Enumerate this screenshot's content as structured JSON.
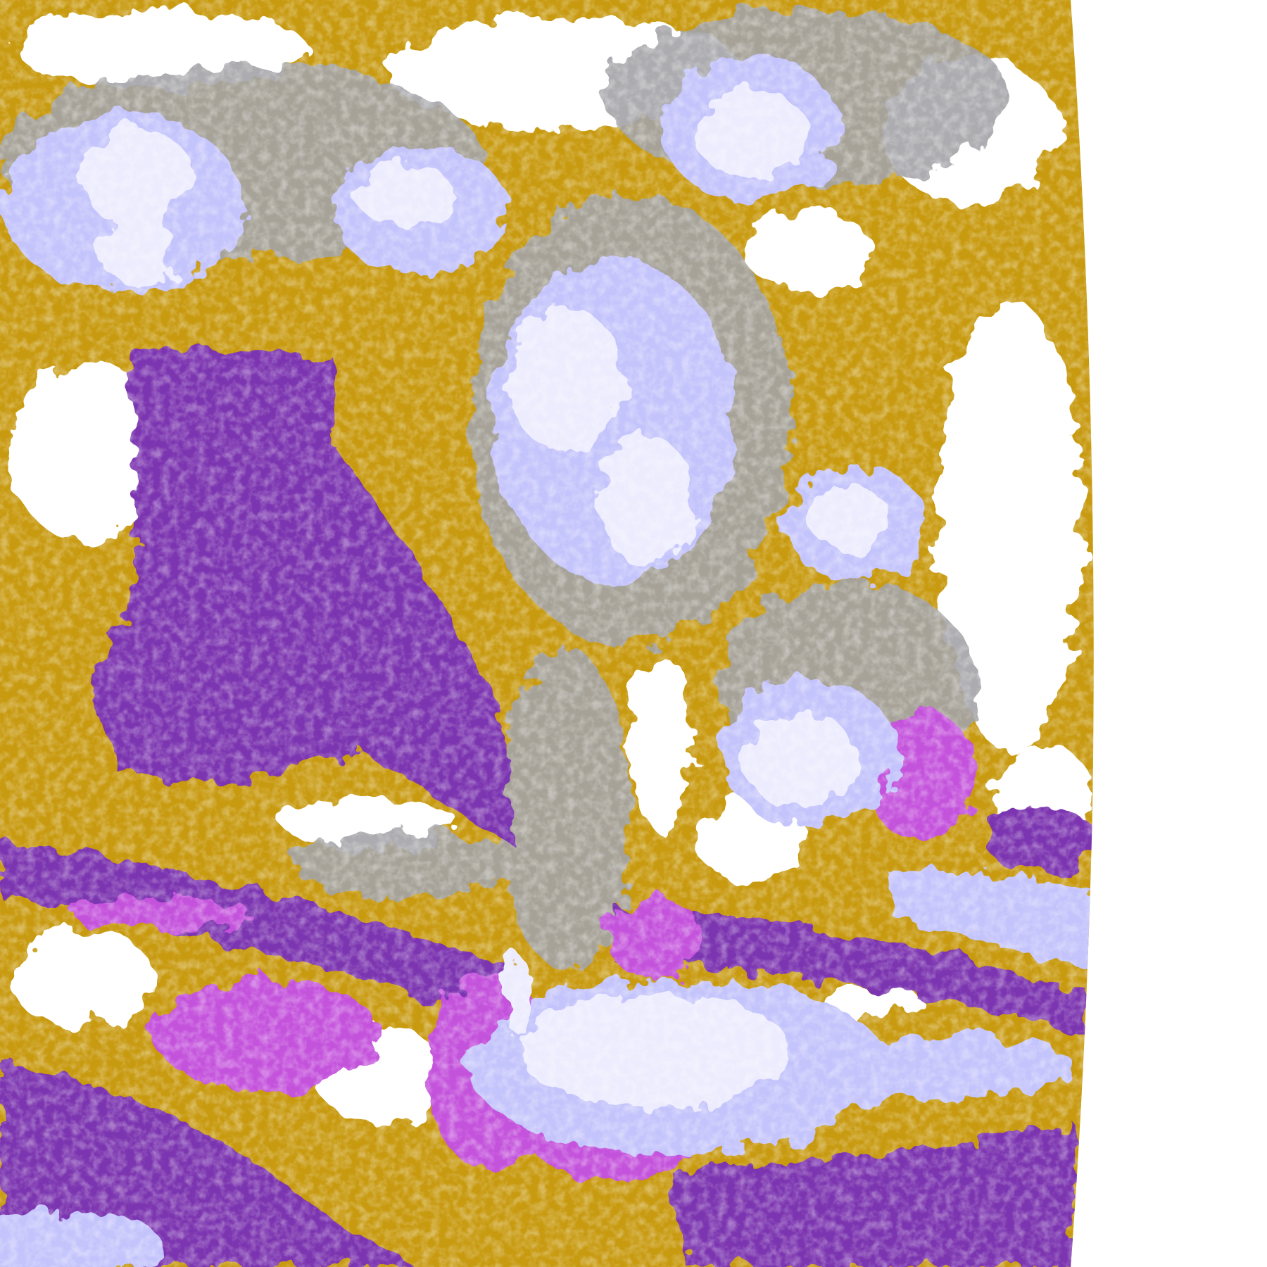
{
  "map": {
    "kind": "satellite cloud-type classification imagery",
    "colors": {
      "background": "#ffffff",
      "clear": "#ffffff",
      "low_cloud_gold": "#c89a10",
      "purple": "#7b35b0",
      "magenta": "#c452dc",
      "lavender": "#c4c4fc",
      "pale": "#ececfe",
      "gray": "#a4a4a8",
      "periwinkle": "#9a9af0"
    }
  }
}
